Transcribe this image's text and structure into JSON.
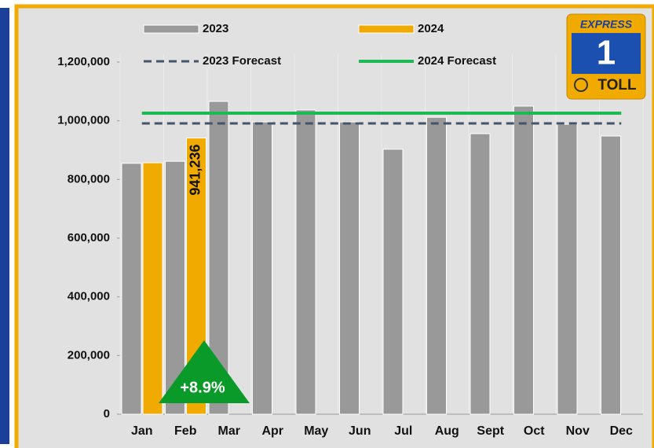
{
  "chart_data": {
    "type": "bar",
    "categories": [
      "Jan",
      "Feb",
      "Mar",
      "Apr",
      "May",
      "Jun",
      "Jul",
      "Aug",
      "Sept",
      "Oct",
      "Nov",
      "Dec"
    ],
    "series": [
      {
        "name": "2023",
        "color": "#999999",
        "values": [
          855000,
          862000,
          1066000,
          996000,
          1037000,
          996000,
          903000,
          1012000,
          956000,
          1050000,
          988000,
          948000
        ]
      },
      {
        "name": "2024",
        "color": "#f0aa00",
        "values": [
          857000,
          941236,
          null,
          null,
          null,
          null,
          null,
          null,
          null,
          null,
          null,
          null
        ],
        "value_labels": [
          null,
          "941,236",
          null,
          null,
          null,
          null,
          null,
          null,
          null,
          null,
          null,
          null
        ]
      },
      {
        "name": "2023 Forecast",
        "color": "#44546a",
        "style": "dashed",
        "values": [
          991000,
          991000,
          991000,
          991000,
          991000,
          991000,
          991000,
          991000,
          991000,
          991000,
          991000,
          991000
        ]
      },
      {
        "name": "2024 Forecast",
        "color": "#1db954",
        "style": "solid",
        "values": [
          1026000,
          1026000,
          1026000,
          1026000,
          1026000,
          1026000,
          1026000,
          1026000,
          1026000,
          1026000,
          1026000,
          1026000
        ]
      }
    ],
    "ylim": [
      0,
      1200000
    ],
    "yticks": [
      0,
      {
        "value": 200000,
        "label": "200,000"
      },
      {
        "value": 400000,
        "label": "400,000"
      },
      {
        "value": 600000,
        "label": "600,000"
      },
      {
        "value": 800000,
        "label": "800,000"
      },
      {
        "value": 1000000,
        "label": "1,000,000"
      },
      {
        "value": 1200000,
        "label": "1,200,000"
      }
    ],
    "annotation": {
      "text": "+8.9%",
      "color": "#0a9a2a"
    },
    "logo": {
      "top": "EXPRESS",
      "number": "1",
      "bottom": "TOLL"
    }
  }
}
